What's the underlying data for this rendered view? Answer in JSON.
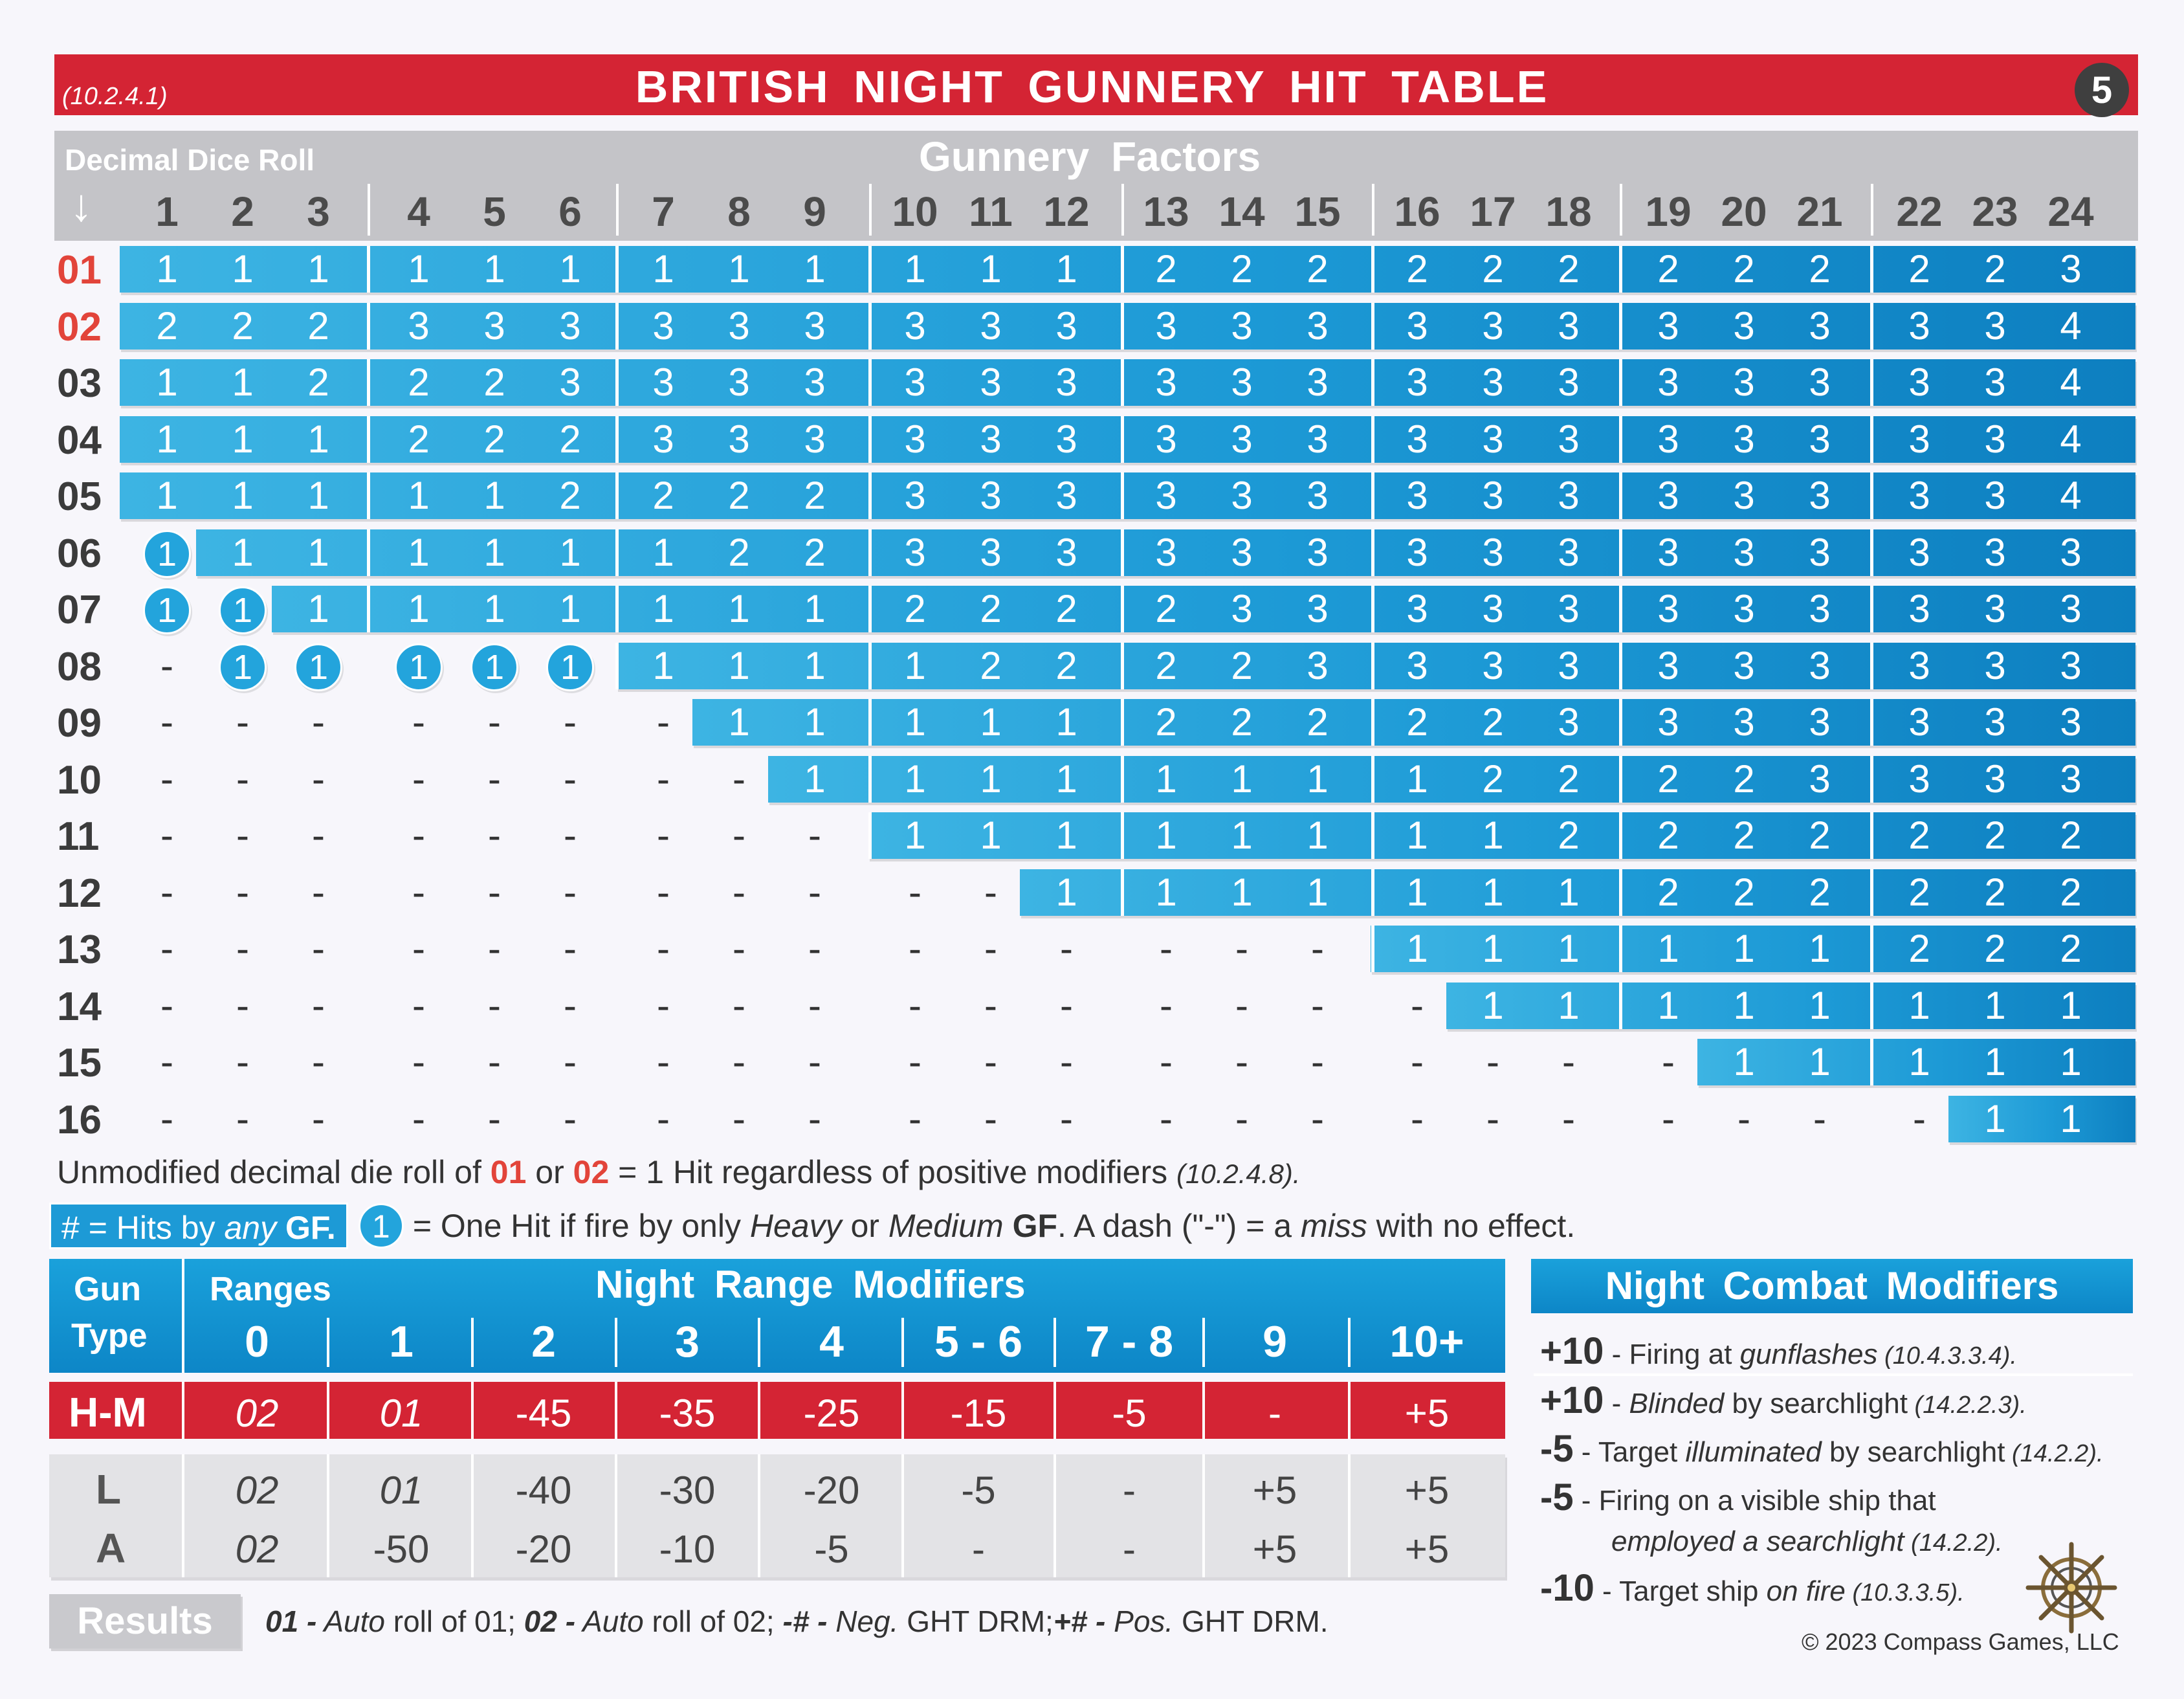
{
  "header": {
    "ref": "(10.2.4.1)",
    "title": "BRITISH  NIGHT  GUNNERY  HIT  TABLE",
    "page_number": "5"
  },
  "table": {
    "roll_label": "Decimal Dice Roll",
    "arrow": "↓",
    "factors_label": "Gunnery  Factors",
    "columns": [
      "1",
      "2",
      "3",
      "4",
      "5",
      "6",
      "7",
      "8",
      "9",
      "10",
      "11",
      "12",
      "13",
      "14",
      "15",
      "16",
      "17",
      "18",
      "19",
      "20",
      "21",
      "22",
      "23",
      "24"
    ],
    "rows": [
      {
        "roll": "01",
        "red": true,
        "cells": [
          "1",
          "1",
          "1",
          "1",
          "1",
          "1",
          "1",
          "1",
          "1",
          "1",
          "1",
          "1",
          "2",
          "2",
          "2",
          "2",
          "2",
          "2",
          "2",
          "2",
          "2",
          "2",
          "2",
          "3"
        ]
      },
      {
        "roll": "02",
        "red": true,
        "cells": [
          "2",
          "2",
          "2",
          "3",
          "3",
          "3",
          "3",
          "3",
          "3",
          "3",
          "3",
          "3",
          "3",
          "3",
          "3",
          "3",
          "3",
          "3",
          "3",
          "3",
          "3",
          "3",
          "3",
          "4"
        ]
      },
      {
        "roll": "03",
        "cells": [
          "1",
          "1",
          "2",
          "2",
          "2",
          "3",
          "3",
          "3",
          "3",
          "3",
          "3",
          "3",
          "3",
          "3",
          "3",
          "3",
          "3",
          "3",
          "3",
          "3",
          "3",
          "3",
          "3",
          "4"
        ]
      },
      {
        "roll": "04",
        "cells": [
          "1",
          "1",
          "1",
          "2",
          "2",
          "2",
          "3",
          "3",
          "3",
          "3",
          "3",
          "3",
          "3",
          "3",
          "3",
          "3",
          "3",
          "3",
          "3",
          "3",
          "3",
          "3",
          "3",
          "4"
        ]
      },
      {
        "roll": "05",
        "cells": [
          "1",
          "1",
          "1",
          "1",
          "1",
          "2",
          "2",
          "2",
          "2",
          "3",
          "3",
          "3",
          "3",
          "3",
          "3",
          "3",
          "3",
          "3",
          "3",
          "3",
          "3",
          "3",
          "3",
          "4"
        ]
      },
      {
        "roll": "06",
        "cells": [
          "(1)",
          "1",
          "1",
          "1",
          "1",
          "1",
          "1",
          "2",
          "2",
          "3",
          "3",
          "3",
          "3",
          "3",
          "3",
          "3",
          "3",
          "3",
          "3",
          "3",
          "3",
          "3",
          "3",
          "3"
        ]
      },
      {
        "roll": "07",
        "cells": [
          "(1)",
          "(1)",
          "1",
          "1",
          "1",
          "1",
          "1",
          "1",
          "1",
          "2",
          "2",
          "2",
          "2",
          "3",
          "3",
          "3",
          "3",
          "3",
          "3",
          "3",
          "3",
          "3",
          "3",
          "3"
        ]
      },
      {
        "roll": "08",
        "cells": [
          "-",
          "(1)",
          "(1)",
          "(1)",
          "(1)",
          "(1)",
          "1",
          "1",
          "1",
          "1",
          "2",
          "2",
          "2",
          "2",
          "3",
          "3",
          "3",
          "3",
          "3",
          "3",
          "3",
          "3",
          "3",
          "3"
        ]
      },
      {
        "roll": "09",
        "cells": [
          "-",
          "-",
          "-",
          "-",
          "-",
          "-",
          "-",
          "1",
          "1",
          "1",
          "1",
          "1",
          "2",
          "2",
          "2",
          "2",
          "2",
          "3",
          "3",
          "3",
          "3",
          "3",
          "3",
          "3"
        ]
      },
      {
        "roll": "10",
        "cells": [
          "-",
          "-",
          "-",
          "-",
          "-",
          "-",
          "-",
          "-",
          "1",
          "1",
          "1",
          "1",
          "1",
          "1",
          "1",
          "1",
          "2",
          "2",
          "2",
          "2",
          "3",
          "3",
          "3",
          "3"
        ]
      },
      {
        "roll": "11",
        "cells": [
          "-",
          "-",
          "-",
          "-",
          "-",
          "-",
          "-",
          "-",
          "-",
          "1",
          "1",
          "1",
          "1",
          "1",
          "1",
          "1",
          "1",
          "2",
          "2",
          "2",
          "2",
          "2",
          "2",
          "2"
        ]
      },
      {
        "roll": "12",
        "cells": [
          "-",
          "-",
          "-",
          "-",
          "-",
          "-",
          "-",
          "-",
          "-",
          "-",
          "-",
          "1",
          "1",
          "1",
          "1",
          "1",
          "1",
          "1",
          "2",
          "2",
          "2",
          "2",
          "2",
          "2"
        ]
      },
      {
        "roll": "13",
        "cells": [
          "-",
          "-",
          "-",
          "-",
          "-",
          "-",
          "-",
          "-",
          "-",
          "-",
          "-",
          "-",
          "-",
          "-",
          "-",
          "1",
          "1",
          "1",
          "1",
          "1",
          "1",
          "2",
          "2",
          "2"
        ]
      },
      {
        "roll": "14",
        "cells": [
          "-",
          "-",
          "-",
          "-",
          "-",
          "-",
          "-",
          "-",
          "-",
          "-",
          "-",
          "-",
          "-",
          "-",
          "-",
          "-",
          "1",
          "1",
          "1",
          "1",
          "1",
          "1",
          "1",
          "1"
        ]
      },
      {
        "roll": "15",
        "cells": [
          "-",
          "-",
          "-",
          "-",
          "-",
          "-",
          "-",
          "-",
          "-",
          "-",
          "-",
          "-",
          "-",
          "-",
          "-",
          "-",
          "-",
          "-",
          "-",
          "1",
          "1",
          "1",
          "1",
          "1"
        ]
      },
      {
        "roll": "16",
        "cells": [
          "-",
          "-",
          "-",
          "-",
          "-",
          "-",
          "-",
          "-",
          "-",
          "-",
          "-",
          "-",
          "-",
          "-",
          "-",
          "-",
          "-",
          "-",
          "-",
          "-",
          "-",
          "-",
          "1",
          "1"
        ]
      }
    ]
  },
  "notes": {
    "n1_pre": "Unmodified decimal die roll of ",
    "n1_a": "01",
    "n1_or": " or ",
    "n1_b": "02",
    "n1_post": " = 1 Hit regardless of positive modifiers ",
    "n1_ref": "(10.2.4.8).",
    "legend_box_a": "#  = Hits by ",
    "legend_box_any": "any",
    "legend_box_b": " GF.",
    "legend_circ": "1",
    "legend_a": "= One Hit if fire by only ",
    "legend_heavy": "Heavy",
    "legend_or": " or ",
    "legend_medium": "Medium",
    "legend_gf": " GF",
    "legend_b": ". A dash (\"-\") = a ",
    "legend_miss": "miss",
    "legend_c": " with no effect."
  },
  "range_table": {
    "gun": "Gun",
    "type": "Type",
    "ranges_label": "Ranges",
    "title": "Night  Range  Modifiers",
    "ranges": [
      "0",
      "1",
      "2",
      "3",
      "4",
      "5 - 6",
      "7 - 8",
      "9",
      "10+"
    ],
    "rows": [
      {
        "label": "H-M",
        "values": [
          "02",
          "01",
          "-45",
          "-35",
          "-25",
          "-15",
          "-5",
          "-",
          "+5"
        ]
      },
      {
        "label": "L",
        "values": [
          "02",
          "01",
          "-40",
          "-30",
          "-20",
          "-5",
          "-",
          "+5",
          "+5"
        ]
      },
      {
        "label": "A",
        "values": [
          "02",
          "-50",
          "-20",
          "-10",
          "-5",
          "-",
          "-",
          "+5",
          "+5"
        ]
      }
    ]
  },
  "results": {
    "button": "Results",
    "a": "01 -",
    "a_auto": " Auto",
    "a_rest": " roll of 01; ",
    "b": "02 -",
    "b_auto": " Auto",
    "b_rest": " roll of 02; ",
    "c": "-# -",
    "c_neg": " Neg.",
    "c_rest": " GHT DRM;",
    "d": "+# -",
    "d_pos": " Pos.",
    "d_rest": " GHT DRM."
  },
  "combat": {
    "title": "Night  Combat  Modifiers",
    "items": [
      {
        "value": "+10",
        "pre": " - Firing at ",
        "em": "gunflashes",
        "post": "",
        "ref": " (10.4.3.3.4)."
      },
      {
        "value": "+10",
        "pre": " - ",
        "em": "Blinded",
        "post": " by searchlight",
        "ref": " (14.2.2.3)."
      },
      {
        "value": "-5",
        "pre": " - Target ",
        "em": "illuminated",
        "post": " by searchlight",
        "ref": " (14.2.2)."
      },
      {
        "value": "-5",
        "pre": " - Firing on a visible ship that",
        "em": "",
        "post": "",
        "ref": ""
      },
      {
        "value": "",
        "pre": "",
        "em": "employed a searchlight",
        "post": "",
        "ref": " (14.2.2)."
      },
      {
        "value": "-10",
        "pre": " - Target ship ",
        "em": "on fire",
        "post": "",
        "ref": " (10.3.3.5)."
      }
    ]
  },
  "copyright": "© 2023 Compass Games, LLC",
  "colors": {
    "red": "#d42434",
    "blue": "#1d9ad6",
    "gray": "#c4c4c8"
  },
  "icons": [
    "compass-rose-icon",
    "down-arrow-icon"
  ]
}
